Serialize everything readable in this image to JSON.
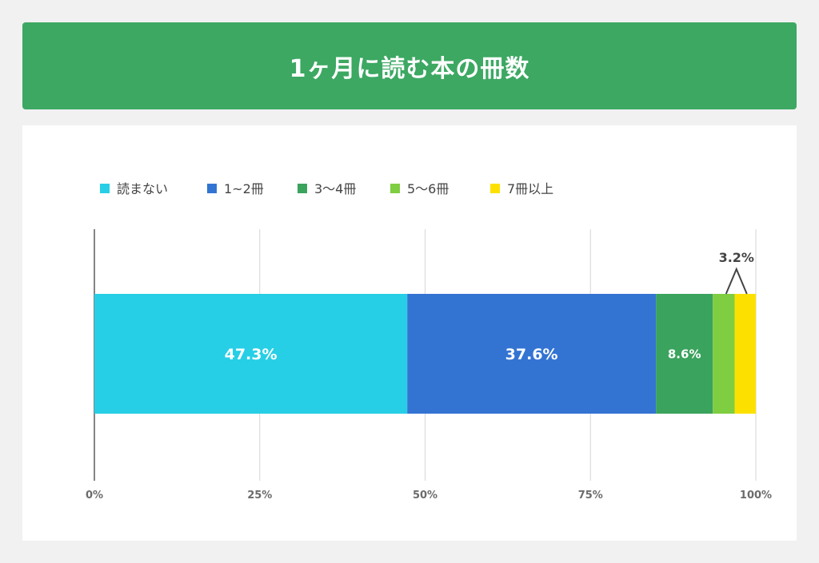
{
  "chart_data": {
    "type": "bar",
    "orientation": "horizontal",
    "stacked": true,
    "percent_stacked": true,
    "title": "1ヶ月に読む本の冊数",
    "xlim": [
      0,
      100
    ],
    "x_ticks": [
      "0%",
      "25%",
      "50%",
      "75%",
      "100%"
    ],
    "x_tick_values": [
      0,
      25,
      50,
      75,
      100
    ],
    "grid": true,
    "legend_position": "top-left",
    "series": [
      {
        "name": "読まない",
        "value": 47.3,
        "label": "47.3%",
        "color": "#26cfe6"
      },
      {
        "name": "1~2冊",
        "value": 37.6,
        "label": "37.6%",
        "color": "#3374d3"
      },
      {
        "name": "3～4冊",
        "value": 8.6,
        "label": "8.6%",
        "color": "#3aa35d"
      },
      {
        "name": "5～6冊",
        "value": 3.3,
        "label": "",
        "color": "#7fcd41"
      },
      {
        "name": "7冊以上",
        "value": 3.2,
        "label": "3.2%",
        "color": "#fce100"
      }
    ]
  }
}
